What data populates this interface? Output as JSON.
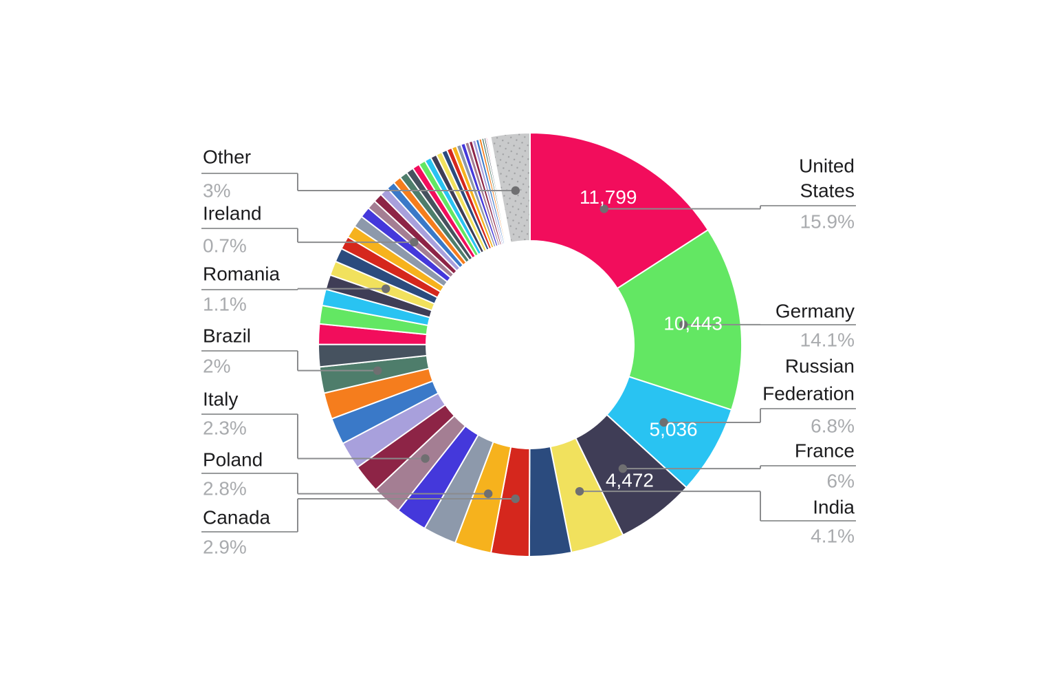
{
  "figure": {
    "background": "#ffffff"
  },
  "colors": {
    "name_label": "#1c1c1e",
    "percent_label": "#a9abae",
    "value_label": "#ffffff",
    "leader_line": "#8a8b8d",
    "rule_line": "#98999b",
    "anchor_dot": "#6f6f71",
    "slice_gap": "#ffffff",
    "other_fill": "#c9cacb",
    "other_dot": "#9fa0a2"
  },
  "chart_data": {
    "type": "pie",
    "donut": true,
    "start_angle": "top",
    "direction": "clockwise",
    "legend_position": "none",
    "title": "",
    "palette": [
      "#f20d5c",
      "#63e763",
      "#29c3f2",
      "#3f3d56",
      "#f1e15d",
      "#2b4b7e",
      "#d5271d",
      "#f6b21d",
      "#8d99ab",
      "#4438db",
      "#a47e93",
      "#8d2446",
      "#a8a0dc",
      "#3a79c8",
      "#f57d1d",
      "#4e7d6b",
      "#46525f"
    ],
    "slices": [
      {
        "label": "United States",
        "percent": 15.9,
        "percent_label": "15.9%",
        "value_label": "11,799"
      },
      {
        "label": "Germany",
        "percent": 14.1,
        "percent_label": "14.1%",
        "value_label": "10,443"
      },
      {
        "label": "Russian Federation",
        "percent": 6.8,
        "percent_label": "6.8%",
        "value_label": "5,036"
      },
      {
        "label": "France",
        "percent": 6.0,
        "percent_label": "6%",
        "value_label": "4,472"
      },
      {
        "label": "India",
        "percent": 4.1,
        "percent_label": "4.1%"
      },
      {
        "percent": 3.2
      },
      {
        "label": "Canada",
        "percent": 2.9,
        "percent_label": "2.9%"
      },
      {
        "label": "Poland",
        "percent": 2.8,
        "percent_label": "2.8%"
      },
      {
        "percent": 2.55
      },
      {
        "percent": 2.4
      },
      {
        "label": "Italy",
        "percent": 2.3,
        "percent_label": "2.3%"
      },
      {
        "percent": 2.18
      },
      {
        "percent": 2.1
      },
      {
        "percent": 2.04
      },
      {
        "percent": 2.01
      },
      {
        "label": "Brazil",
        "percent": 2.0,
        "percent_label": "2%"
      },
      {
        "percent": 1.7
      },
      {
        "percent": 1.55
      },
      {
        "percent": 1.4
      },
      {
        "percent": 1.25
      },
      {
        "percent": 1.12
      },
      {
        "label": "Romania",
        "percent": 1.1,
        "percent_label": "1.1%"
      },
      {
        "percent": 1.06
      },
      {
        "percent": 1.0
      },
      {
        "percent": 0.95
      },
      {
        "percent": 0.9
      },
      {
        "percent": 0.82
      },
      {
        "label": "Ireland",
        "percent": 0.7,
        "percent_label": "0.7%"
      },
      {
        "percent": 0.69
      },
      {
        "percent": 0.67
      },
      {
        "percent": 0.65
      },
      {
        "percent": 0.62
      },
      {
        "percent": 0.6
      },
      {
        "percent": 0.57
      },
      {
        "percent": 0.55
      },
      {
        "percent": 0.52
      },
      {
        "percent": 0.5
      },
      {
        "percent": 0.47
      },
      {
        "percent": 0.45
      },
      {
        "percent": 0.42
      },
      {
        "percent": 0.4
      },
      {
        "percent": 0.38
      },
      {
        "percent": 0.35
      },
      {
        "percent": 0.33
      },
      {
        "percent": 0.3
      },
      {
        "percent": 0.28
      },
      {
        "percent": 0.26
      },
      {
        "percent": 0.24
      },
      {
        "percent": 0.21
      },
      {
        "percent": 0.18
      },
      {
        "percent": 0.15
      },
      {
        "percent": 0.12
      },
      {
        "percent": 0.09
      },
      {
        "percent": 0.06
      },
      {
        "percent": 0.04
      },
      {
        "percent": 0.02
      },
      {
        "percent": 0.01
      },
      {
        "percent": 0.01
      },
      {
        "percent": 0.01
      },
      {
        "label": "Other",
        "percent": 3.0,
        "percent_label": "3%",
        "pattern": true
      }
    ]
  }
}
